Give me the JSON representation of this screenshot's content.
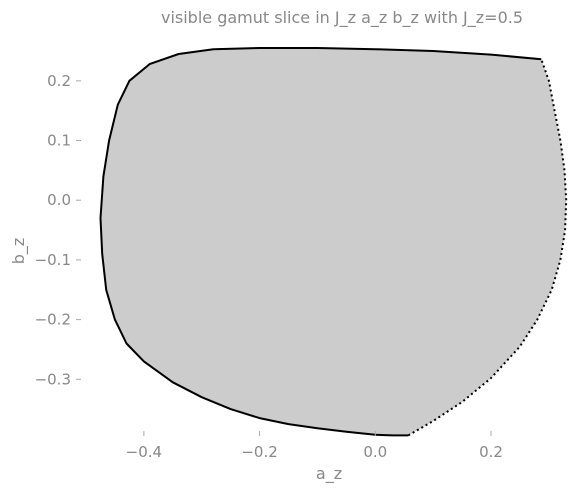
{
  "chart_data": {
    "type": "area",
    "title": "visible gamut slice in J_z a_z b_z with J_z=0.5",
    "xlabel": "a_z",
    "ylabel": "b_z",
    "xlim": [
      -0.5,
      0.34
    ],
    "ylim": [
      -0.395,
      0.255
    ],
    "x_ticks": [
      {
        "value": -0.4,
        "label": "−0.4"
      },
      {
        "value": -0.2,
        "label": "−0.2"
      },
      {
        "value": 0.0,
        "label": "0.0"
      },
      {
        "value": 0.2,
        "label": "0.2"
      }
    ],
    "y_ticks": [
      {
        "value": 0.2,
        "label": "0.2"
      },
      {
        "value": 0.1,
        "label": "0.1"
      },
      {
        "value": 0.0,
        "label": "0.0"
      },
      {
        "value": -0.1,
        "label": "−0.1"
      },
      {
        "value": -0.2,
        "label": "−0.2"
      },
      {
        "value": -0.3,
        "label": "−0.3"
      }
    ],
    "grid": false,
    "fill_color": "#cccccc",
    "series": [
      {
        "style": "solid",
        "color": "#000000",
        "points": [
          [
            0.287,
            0.236
          ],
          [
            0.2,
            0.244
          ],
          [
            0.1,
            0.25
          ],
          [
            0.0,
            0.253
          ],
          [
            -0.1,
            0.255
          ],
          [
            -0.2,
            0.255
          ],
          [
            -0.28,
            0.253
          ],
          [
            -0.34,
            0.245
          ],
          [
            -0.39,
            0.228
          ],
          [
            -0.425,
            0.2
          ],
          [
            -0.445,
            0.16
          ],
          [
            -0.46,
            0.1
          ],
          [
            -0.47,
            0.04
          ],
          [
            -0.475,
            -0.03
          ],
          [
            -0.472,
            -0.09
          ],
          [
            -0.465,
            -0.15
          ],
          [
            -0.45,
            -0.2
          ],
          [
            -0.43,
            -0.24
          ],
          [
            -0.4,
            -0.27
          ],
          [
            -0.35,
            -0.305
          ],
          [
            -0.3,
            -0.33
          ],
          [
            -0.25,
            -0.35
          ],
          [
            -0.2,
            -0.365
          ],
          [
            -0.15,
            -0.375
          ],
          [
            -0.1,
            -0.382
          ],
          [
            -0.05,
            -0.388
          ],
          [
            0.0,
            -0.393
          ],
          [
            0.03,
            -0.394
          ],
          [
            0.057,
            -0.394
          ]
        ]
      },
      {
        "style": "dotted",
        "color": "#000000",
        "points": [
          [
            0.057,
            -0.394
          ],
          [
            0.1,
            -0.37
          ],
          [
            0.15,
            -0.338
          ],
          [
            0.2,
            -0.298
          ],
          [
            0.25,
            -0.245
          ],
          [
            0.28,
            -0.2
          ],
          [
            0.305,
            -0.15
          ],
          [
            0.32,
            -0.1
          ],
          [
            0.328,
            -0.05
          ],
          [
            0.33,
            0.0
          ],
          [
            0.327,
            0.05
          ],
          [
            0.32,
            0.1
          ],
          [
            0.31,
            0.15
          ],
          [
            0.3,
            0.2
          ],
          [
            0.287,
            0.236
          ]
        ]
      }
    ]
  }
}
